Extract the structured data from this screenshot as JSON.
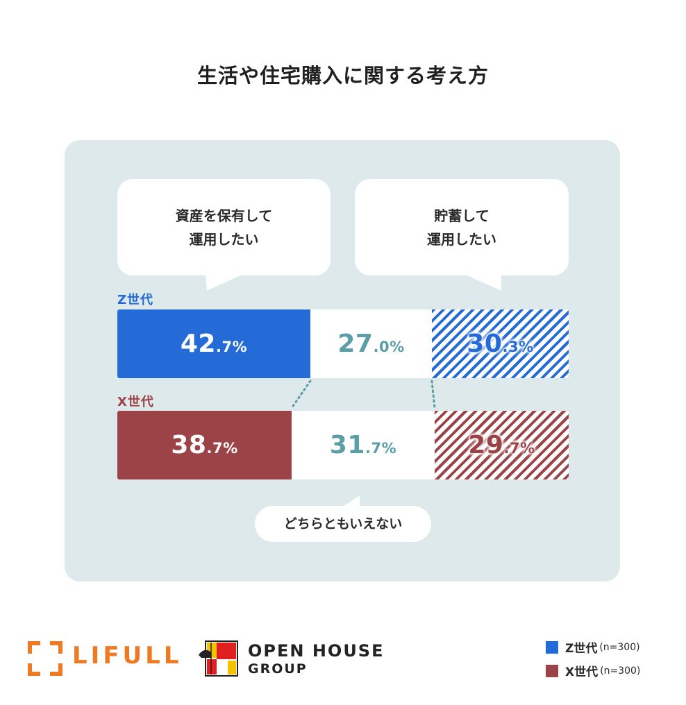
{
  "title": "生活や住宅購入に関する考え方",
  "bubbles": {
    "left": "資産を保有して\n運用したい",
    "right": "貯蓄して\n運用したい",
    "neutral": "どちらともいえない"
  },
  "colors": {
    "z_gen": "#246bd8",
    "x_gen": "#9c4347",
    "neutral_text": "#5a9ea6",
    "panel": "#dde9ea"
  },
  "chart_data": {
    "type": "bar",
    "stacked": true,
    "orientation": "horizontal",
    "title": "生活や住宅購入に関する考え方",
    "categories": [
      "資産を保有して運用したい",
      "どちらともいえない",
      "貯蓄して運用したい"
    ],
    "series": [
      {
        "name": "Z世代",
        "values": [
          42.7,
          27.0,
          30.3
        ]
      },
      {
        "name": "X世代",
        "values": [
          38.7,
          31.7,
          29.7
        ]
      }
    ]
  },
  "rows": [
    {
      "label": "Z世代",
      "color": "#246bd8",
      "segments": [
        {
          "big": "42",
          "small": ".7%"
        },
        {
          "big": "27",
          "small": ".0%"
        },
        {
          "big": "30",
          "small": ".3%"
        }
      ]
    },
    {
      "label": "X世代",
      "color": "#9c4347",
      "segments": [
        {
          "big": "38",
          "small": ".7%"
        },
        {
          "big": "31",
          "small": ".7%"
        },
        {
          "big": "29",
          "small": ".7%"
        }
      ]
    }
  ],
  "legend": [
    {
      "label": "Z世代",
      "n": "(n=300)",
      "color": "#246bd8"
    },
    {
      "label": "X世代",
      "n": "(n=300)",
      "color": "#9c4347"
    }
  ],
  "logos": {
    "lifull": "LIFULL",
    "openhouse_line1": "OPEN HOUSE",
    "openhouse_line2": "GROUP"
  }
}
